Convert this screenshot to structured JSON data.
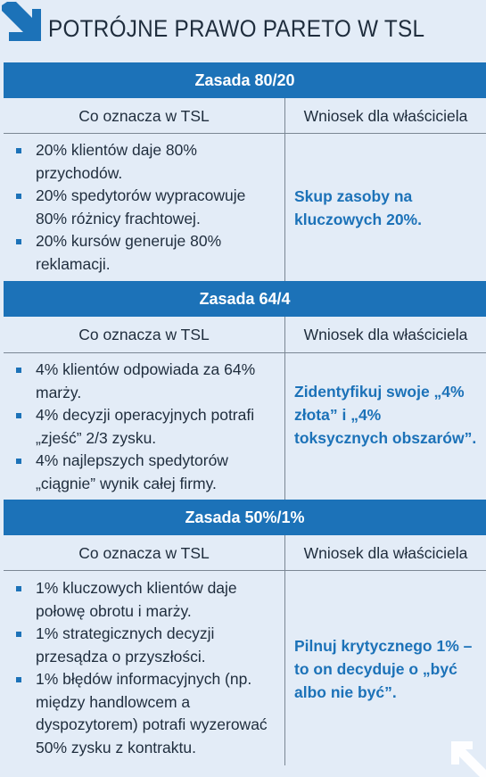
{
  "title": "POTRÓJNE PRAWO PARETO W TSL",
  "colors": {
    "accent": "#1c72b8",
    "background": "#e3ecf7",
    "text": "#1f2d3d"
  },
  "icons": {
    "header": "arrow-down-right-icon",
    "corner": "arrow-up-left-icon"
  },
  "sections": [
    {
      "title": "Zasada 80/20",
      "col_left": "Co oznacza w TSL",
      "col_right": "Wniosek dla właściciela",
      "bullets": [
        "20% klientów daje 80% przychodów.",
        "20% spedytorów wypracowuje 80% różnicy frachtowej.",
        "20% kursów generuje 80% reklamacji."
      ],
      "conclusion": "Skup zasoby na kluczowych 20%."
    },
    {
      "title": "Zasada 64/4",
      "col_left": "Co oznacza w TSL",
      "col_right": "Wniosek dla właściciela",
      "bullets": [
        "4% klientów odpowiada za 64% marży.",
        "4% decyzji operacyjnych potrafi „zjeść” 2/3 zysku.",
        "4% najlepszych spedytorów „ciągnie” wynik całej firmy."
      ],
      "conclusion": "Zidentyfikuj swoje „4% złota” i „4% toksycznych obszarów”."
    },
    {
      "title": "Zasada 50%/1%",
      "col_left": "Co oznacza w TSL",
      "col_right": "Wniosek dla właściciela",
      "bullets": [
        "1% kluczowych klientów daje połowę obrotu i marży.",
        "1% strategicznych decyzji przesądza o przyszłości.",
        "1% błędów informacyjnych (np. między handlowcem a dyspozytorem) potrafi wyzerować 50% zysku z kontraktu."
      ],
      "conclusion": "Pilnuj krytycznego 1% – to on decyduje o „być albo nie być”."
    }
  ]
}
